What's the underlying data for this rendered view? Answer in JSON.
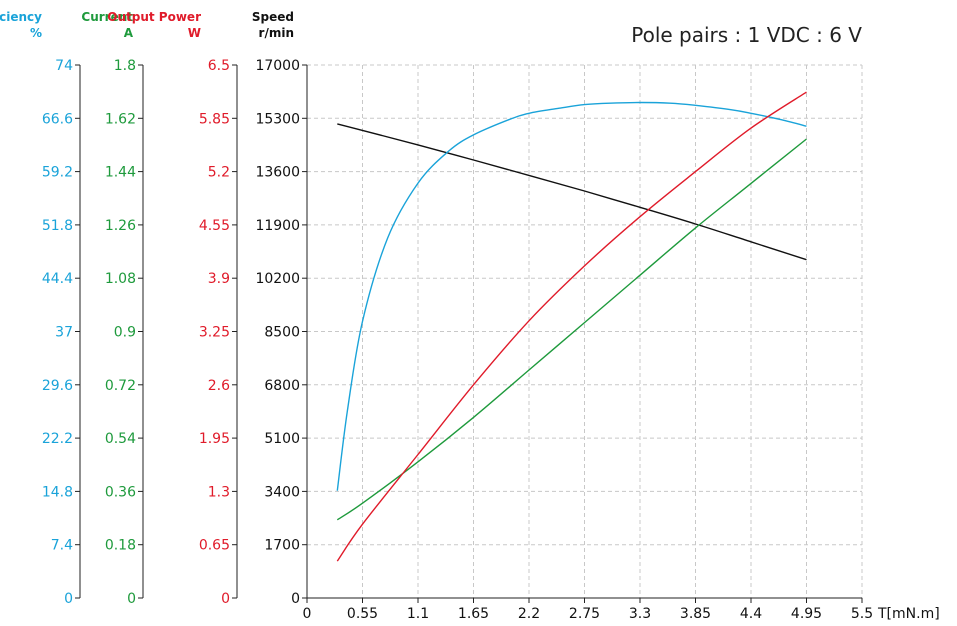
{
  "chart_data": {
    "type": "line",
    "subtitle": "Pole pairs : 1   VDC : 6 V",
    "xlabel": "T[mN.m]",
    "x_ticks": [
      "0",
      "0.55",
      "1.1",
      "1.65",
      "2.2",
      "2.75",
      "3.3",
      "3.85",
      "4.4",
      "4.95",
      "5.5"
    ],
    "xlim": [
      0,
      5.5
    ],
    "grid": true,
    "axes": [
      {
        "id": "efficiency",
        "label": "Efficiency",
        "unit": "%",
        "color": "#1aa3d9",
        "ylim": [
          0,
          74
        ],
        "ticks": [
          "0",
          "7.4",
          "14.8",
          "22.2",
          "29.6",
          "37",
          "44.4",
          "51.8",
          "59.2",
          "66.6",
          "74"
        ]
      },
      {
        "id": "current",
        "label": "Current",
        "unit": "A",
        "color": "#1e9a3c",
        "ylim": [
          0,
          1.8
        ],
        "ticks": [
          "0",
          "0.18",
          "0.36",
          "0.54",
          "0.72",
          "0.9",
          "1.08",
          "1.26",
          "1.44",
          "1.62",
          "1.8"
        ]
      },
      {
        "id": "power",
        "label": "Output Power",
        "unit": "W",
        "color": "#e01b2a",
        "ylim": [
          0,
          6.5
        ],
        "ticks": [
          "0",
          "0.65",
          "1.3",
          "1.95",
          "2.6",
          "3.25",
          "3.9",
          "4.55",
          "5.2",
          "5.85",
          "6.5"
        ]
      },
      {
        "id": "speed",
        "label": "Speed",
        "unit": "r/min",
        "color": "#111111",
        "ylim": [
          0,
          17000
        ],
        "ticks": [
          "0",
          "1700",
          "3400",
          "5100",
          "6800",
          "8500",
          "10200",
          "11900",
          "13600",
          "15300",
          "17000"
        ]
      }
    ],
    "series": [
      {
        "axis": "speed",
        "color": "#111111",
        "x": [
          0.3,
          1.1,
          1.65,
          2.2,
          2.75,
          3.3,
          3.85,
          4.4,
          4.95
        ],
        "y": [
          15120,
          14450,
          13970,
          13480,
          12980,
          12460,
          11930,
          11360,
          10790
        ]
      },
      {
        "axis": "efficiency",
        "color": "#1aa3d9",
        "x": [
          0.3,
          0.4,
          0.55,
          0.8,
          1.1,
          1.4,
          1.65,
          2.0,
          2.2,
          2.5,
          2.75,
          3.0,
          3.3,
          3.6,
          3.85,
          4.2,
          4.4,
          4.7,
          4.95
        ],
        "y": [
          14.9,
          26.0,
          38.4,
          50.0,
          57.6,
          62.0,
          64.3,
          66.4,
          67.3,
          68.0,
          68.5,
          68.7,
          68.8,
          68.7,
          68.4,
          67.8,
          67.3,
          66.4,
          65.5
        ]
      },
      {
        "axis": "current",
        "color": "#1e9a3c",
        "x": [
          0.3,
          0.55,
          1.1,
          1.65,
          2.2,
          2.75,
          3.3,
          3.85,
          4.4,
          4.95
        ],
        "y": [
          0.264,
          0.32,
          0.46,
          0.61,
          0.77,
          0.93,
          1.09,
          1.25,
          1.4,
          1.55
        ]
      },
      {
        "axis": "power",
        "color": "#e01b2a",
        "x": [
          0.3,
          0.55,
          1.1,
          1.65,
          2.2,
          2.75,
          3.3,
          3.85,
          4.4,
          4.95
        ],
        "y": [
          0.45,
          0.9,
          1.75,
          2.6,
          3.38,
          4.05,
          4.65,
          5.2,
          5.73,
          6.17
        ]
      }
    ]
  }
}
